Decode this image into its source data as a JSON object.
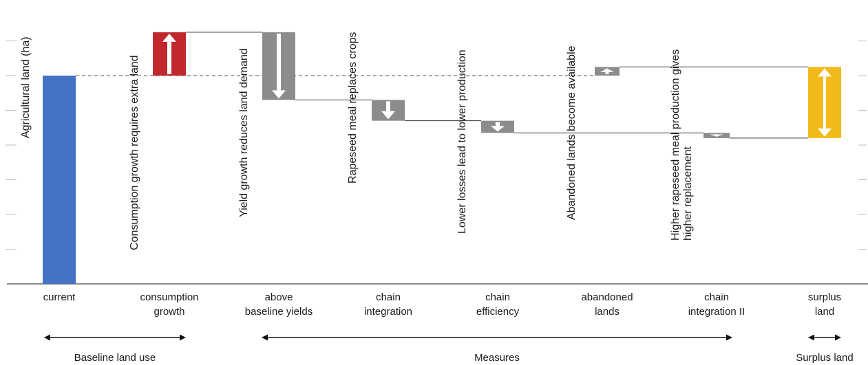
{
  "chart_data": {
    "type": "bar",
    "subtype": "waterfall",
    "ylabel": "Agricultural land (ha)",
    "y_ticks_labeled": false,
    "grid": false,
    "baseline_reference_line": "dashed",
    "steps": [
      {
        "category_lines": [
          "current"
        ],
        "kind": "total",
        "start": 0,
        "end": 6.0,
        "color": "#4472C4",
        "arrow": "none",
        "annotation": []
      },
      {
        "category_lines": [
          "consumption",
          "growth"
        ],
        "kind": "delta",
        "start": 6.0,
        "end": 7.25,
        "color": "#C0282D",
        "arrow": "up",
        "annotation": [
          "Consumption growth requires extra land"
        ]
      },
      {
        "category_lines": [
          "above",
          "baseline yields"
        ],
        "kind": "delta",
        "start": 7.25,
        "end": 5.3,
        "color": "#8C8C8C",
        "arrow": "down",
        "annotation": [
          "Yield growth reduces land demand"
        ]
      },
      {
        "category_lines": [
          "chain",
          "integration"
        ],
        "kind": "delta",
        "start": 5.3,
        "end": 4.7,
        "color": "#8C8C8C",
        "arrow": "down",
        "annotation": [
          "Rapeseed meal replaces crops"
        ]
      },
      {
        "category_lines": [
          "chain",
          "efficiency"
        ],
        "kind": "delta",
        "start": 4.7,
        "end": 4.35,
        "color": "#8C8C8C",
        "arrow": "down",
        "annotation": [
          "Lower losses lead to lower production"
        ]
      },
      {
        "category_lines": [
          "abandoned",
          "lands"
        ],
        "kind": "delta",
        "start": 6.0,
        "end": 6.25,
        "color": "#8C8C8C",
        "arrow": "up",
        "annotation": [
          "Abandoned lands become available"
        ]
      },
      {
        "category_lines": [
          "chain",
          "integration II"
        ],
        "kind": "delta",
        "start": 4.35,
        "end": 4.2,
        "color": "#8C8C8C",
        "arrow": "down",
        "annotation": [
          "Higher rapeseed meal production gives",
          "higher replacement"
        ]
      },
      {
        "category_lines": [
          "surplus",
          "land"
        ],
        "kind": "total",
        "start": 4.2,
        "end": 6.25,
        "color": "#F2B91B",
        "arrow": "both",
        "annotation": []
      }
    ],
    "connectors": [
      {
        "from": 1,
        "to": 2,
        "value": 7.25
      },
      {
        "from": 2,
        "to": 3,
        "value": 5.3
      },
      {
        "from": 3,
        "to": 4,
        "value": 4.7
      },
      {
        "from": 4,
        "to": 6,
        "value": 4.35
      },
      {
        "from": 5,
        "to": 7,
        "value": 6.25
      },
      {
        "from": 6,
        "to": 7,
        "value": 4.2
      }
    ],
    "groups": [
      {
        "label": "Baseline land use",
        "from": 0,
        "to": 1
      },
      {
        "label": "Measures",
        "from": 2,
        "to": 6
      },
      {
        "label": "Surplus land",
        "from": 7,
        "to": 7
      }
    ]
  }
}
